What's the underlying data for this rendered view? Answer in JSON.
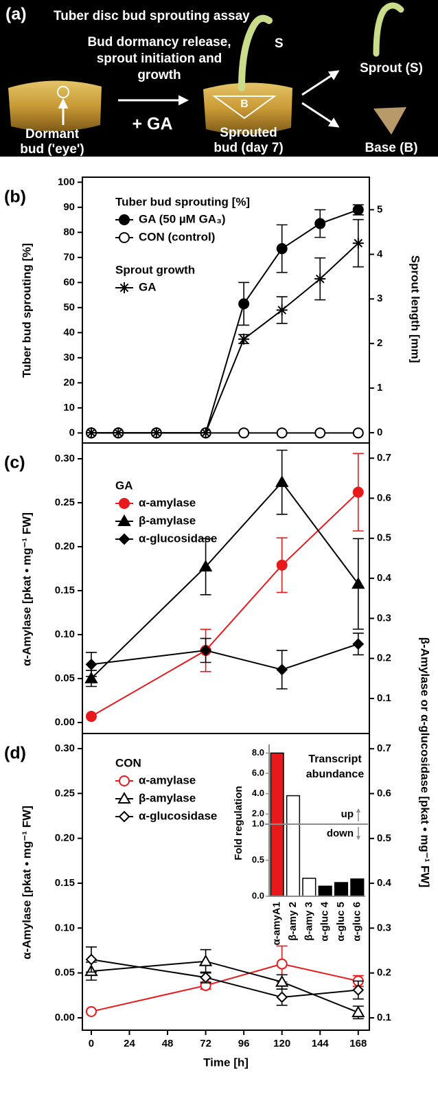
{
  "panel_a": {
    "label": "(a)",
    "title": "Tuber disc bud sprouting assay",
    "process": [
      "Bud dormancy release,",
      "sprout initiation and",
      "growth"
    ],
    "treatment": "+ GA",
    "dormant": [
      "Dormant",
      "bud ('eye')"
    ],
    "sprouted": [
      "Sprouted",
      "bud (day 7)"
    ],
    "sprout_mark": "S",
    "base_mark": "B",
    "sprout": "Sprout (S)",
    "base": "Base (B)"
  },
  "chart_data": [
    {
      "type": "line",
      "panel_label": "(b)",
      "ylabel": "Tuber bud sprouting [%]",
      "y2label": "Sprout length [mm]",
      "x": [
        0,
        17,
        41,
        72,
        96,
        120,
        144,
        168
      ],
      "xlim": [
        -5.6,
        175
      ],
      "ylim": [
        -4,
        102
      ],
      "yticks": [
        0,
        10,
        20,
        30,
        40,
        50,
        60,
        70,
        80,
        90,
        100
      ],
      "y2lim": [
        -0.23,
        5.73
      ],
      "y2ticks": [
        0,
        1,
        2,
        3,
        4,
        5
      ],
      "series": [
        {
          "name": "GA (50 µM GA₃)",
          "legend_title": "Tuber bud sprouting [%]",
          "color": "#000000",
          "marker": "circle",
          "filled": true,
          "values": [
            0,
            0,
            0,
            0,
            51.5,
            73.5,
            83.5,
            89
          ],
          "errors": [
            null,
            null,
            null,
            null,
            8.5,
            9.5,
            5.5,
            2
          ]
        },
        {
          "name": "CON (control)",
          "color": "#000000",
          "marker": "circle",
          "filled": false,
          "values": [
            0,
            0,
            0,
            0,
            0,
            0,
            0,
            0
          ]
        },
        {
          "name": "GA",
          "legend_title": "Sprout growth",
          "color": "#000000",
          "marker": "star",
          "filled": true,
          "axis": "y2",
          "values": [
            0,
            0,
            0,
            0,
            2.1,
            2.75,
            3.45,
            4.25
          ],
          "errors": [
            null,
            null,
            null,
            null,
            0.1,
            0.3,
            0.47,
            0.53
          ]
        }
      ]
    },
    {
      "type": "line",
      "panel_label": "(c)",
      "ylabel": "α-Amylase [pkat • mg⁻¹ FW]",
      "ylabel_color": "#e8191b",
      "y2label": "β-Amylase or α-glucosidase [pkat • mg⁻¹ FW]",
      "x": [
        0,
        72,
        120,
        168
      ],
      "xlim": [
        -5.6,
        175
      ],
      "ylim": [
        -0.0125,
        0.318
      ],
      "yticks": [
        {
          "value": 0,
          "label": "0.00"
        },
        {
          "value": 0.05,
          "label": "0.05"
        },
        {
          "value": 0.1,
          "label": "0.10"
        },
        {
          "value": 0.15,
          "label": "0.15"
        },
        {
          "value": 0.2,
          "label": "0.20"
        },
        {
          "value": 0.25,
          "label": "0.25"
        },
        {
          "value": 0.3,
          "label": "0.30"
        }
      ],
      "y2lim": [
        0.0125,
        0.738
      ],
      "y2ticks": [
        0.1,
        0.2,
        0.3,
        0.4,
        0.5,
        0.6,
        0.7
      ],
      "series": [
        {
          "name": "α-amylase",
          "legend_title": "GA",
          "color": "#e8191b",
          "marker": "circle",
          "filled": true,
          "values": [
            0.007,
            0.082,
            0.179,
            0.262
          ],
          "errors": [
            null,
            0.024,
            0.031,
            0.044
          ]
        },
        {
          "name": "β-amylase",
          "color": "#000000",
          "marker": "triangle",
          "filled": true,
          "axis": "y2",
          "values": [
            0.15,
            0.429,
            0.64,
            0.386
          ],
          "errors": [
            0.02,
            0.07,
            0.08,
            0.113
          ]
        },
        {
          "name": "α-glucosidase",
          "color": "#000000",
          "marker": "diamond",
          "filled": true,
          "axis": "y2",
          "values": [
            0.185,
            0.22,
            0.172,
            0.236
          ],
          "errors": [
            0.03,
            0.03,
            0.048,
            0.027
          ]
        }
      ]
    },
    {
      "type": "line",
      "panel_label": "(d)",
      "ylabel": "α-Amylase [pkat • mg⁻¹ FW]",
      "ylabel_color": "#e8191b",
      "xlabel": "Time [h]",
      "x": [
        0,
        72,
        120,
        168
      ],
      "xlim": [
        -5.6,
        175
      ],
      "xticks": [
        0,
        24,
        48,
        72,
        96,
        120,
        144,
        168
      ],
      "ylim": [
        -0.0138,
        0.3168
      ],
      "yticks": [
        {
          "value": 0,
          "label": "0.00"
        },
        {
          "value": 0.05,
          "label": "0.05"
        },
        {
          "value": 0.1,
          "label": "0.10"
        },
        {
          "value": 0.15,
          "label": "0.15"
        },
        {
          "value": 0.2,
          "label": "0.20"
        },
        {
          "value": 0.25,
          "label": "0.25"
        },
        {
          "value": 0.3,
          "label": "0.30"
        }
      ],
      "y2lim": [
        0.0724,
        0.734
      ],
      "y2ticks": [
        0.1,
        0.2,
        0.3,
        0.4,
        0.5,
        0.6,
        0.7
      ],
      "series": [
        {
          "name": "α-amylase",
          "legend_title": "CON",
          "color": "#e8191b",
          "marker": "circle",
          "filled": false,
          "values": [
            0.007,
            0.036,
            0.06,
            0.041
          ],
          "errors": [
            null,
            0.004,
            0.02,
            0.006
          ]
        },
        {
          "name": "β-amylase",
          "color": "#000000",
          "marker": "triangle",
          "filled": false,
          "axis": "y2",
          "values": [
            0.204,
            0.226,
            0.18,
            0.112
          ],
          "errors": [
            0.02,
            0.026,
            0.016,
            0.014
          ]
        },
        {
          "name": "α-glucosidase",
          "color": "#000000",
          "marker": "diamond",
          "filled": false,
          "axis": "y2",
          "values": [
            0.23,
            0.19,
            0.146,
            0.162
          ],
          "errors": [
            0.028,
            0.012,
            0.018,
            0.02
          ]
        }
      ],
      "inset": {
        "type": "bar",
        "title": [
          "Transcript",
          "abundance"
        ],
        "ylabel": "Fold regulation",
        "categories": [
          "α-amyA1",
          "β-amy 2",
          "β-amy 3",
          "α-gluc 4",
          "α-gluc 5",
          "α-gluc 6"
        ],
        "category_colors": [
          "#e8191b",
          "#000000",
          "#000000",
          "#000000",
          "#000000",
          "#000000"
        ],
        "values": [
          8.0,
          3.8,
          0.25,
          0.14,
          0.19,
          0.24
        ],
        "colors": [
          "#e8191b",
          "#ffffff",
          "#ffffff",
          "#000000",
          "#000000",
          "#000000"
        ],
        "ylim": [
          0,
          8.3
        ],
        "axis_break": 1.0,
        "yticks": [
          {
            "value": 0,
            "label": "0.0"
          },
          {
            "value": 0.5,
            "label": "0.5"
          },
          {
            "value": 1,
            "label": "1.0"
          },
          {
            "value": 2,
            "label": "2.0"
          },
          {
            "value": 4,
            "label": "4.0"
          },
          {
            "value": 6,
            "label": "6.0"
          },
          {
            "value": 8,
            "label": "8.0"
          }
        ],
        "annotations": [
          "up",
          "down"
        ],
        "color": "#8c8c8c"
      }
    }
  ]
}
